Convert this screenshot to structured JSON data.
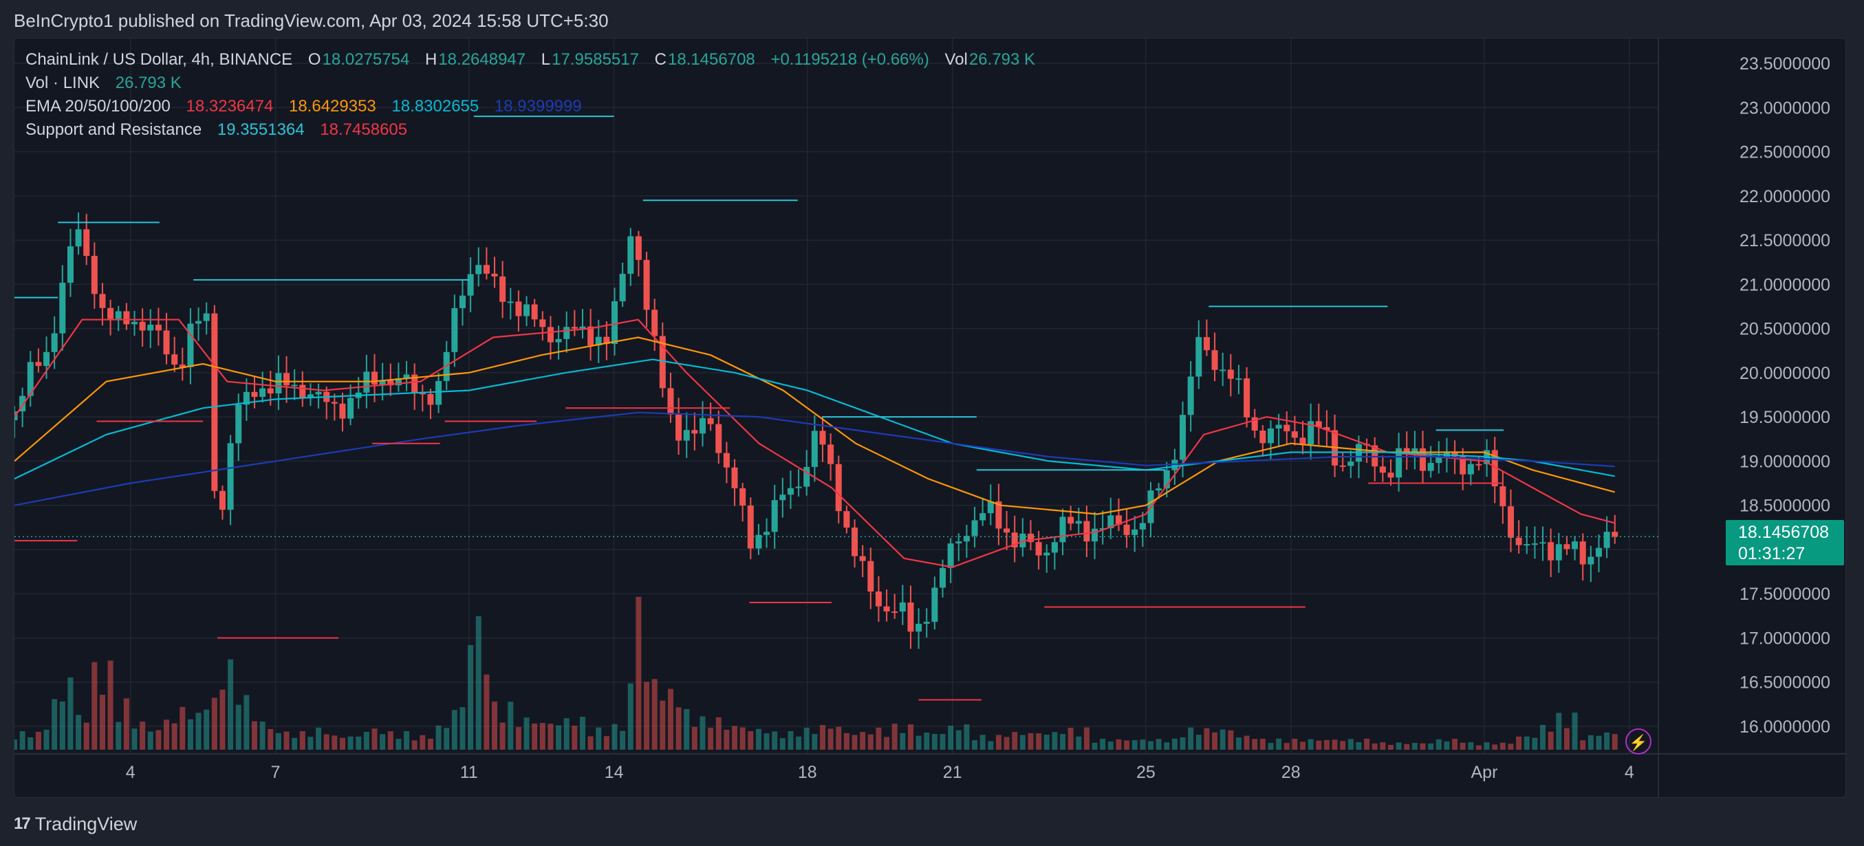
{
  "header": {
    "publisher_text": "BeInCrypto1 published on TradingView.com, Apr 03, 2024 15:58 UTC+5:30"
  },
  "legend": {
    "symbol": "ChainLink / US Dollar, 4h, BINANCE",
    "o_label": "O",
    "o_value": "18.0275754",
    "h_label": "H",
    "h_value": "18.2648947",
    "l_label": "L",
    "l_value": "17.9585517",
    "c_label": "C",
    "c_value": "18.1456708",
    "change": "+0.1195218 (+0.66%)",
    "vol_label": "Vol",
    "vol_value": "26.793 K",
    "vol_row_label": "Vol · LINK",
    "vol_row_value": "26.793 K",
    "ema_label": "EMA 20/50/100/200",
    "ema20": "18.3236474",
    "ema50": "18.6429353",
    "ema100": "18.8302655",
    "ema200": "18.9399999",
    "sr_label": "Support and Resistance",
    "sr_res": "19.3551364",
    "sr_sup": "18.7458605"
  },
  "price_tag": {
    "price": "18.1456708",
    "countdown": "01:31:27"
  },
  "footer": {
    "brand": "TradingView",
    "logo_glyph": "17"
  },
  "colors": {
    "up": "#26a69a",
    "down": "#ef5350",
    "ema20": "#f23645",
    "ema50": "#ff9800",
    "ema100": "#00bcd4",
    "ema200": "#1e3bb5",
    "resistance": "#26c6da",
    "support": "#f23645",
    "background": "#131722",
    "grid": "#222631"
  },
  "chart_data": {
    "type": "candlestick",
    "title": "ChainLink / US Dollar, 4h, BINANCE",
    "xlabel": "",
    "ylabel": "",
    "ylim": [
      15.7,
      23.7
    ],
    "y_ticks": [
      "23.5000000",
      "23.0000000",
      "22.5000000",
      "22.0000000",
      "21.5000000",
      "21.0000000",
      "20.5000000",
      "20.0000000",
      "19.5000000",
      "19.0000000",
      "18.5000000",
      "18.0000000",
      "17.5000000",
      "17.0000000",
      "16.5000000",
      "16.0000000"
    ],
    "y_tick_values": [
      23.5,
      23.0,
      22.5,
      22.0,
      21.5,
      21.0,
      20.5,
      20.0,
      19.5,
      19.0,
      18.5,
      18.0,
      17.5,
      17.0,
      16.5,
      16.0
    ],
    "x_ticks": [
      {
        "label": "4",
        "day": 4
      },
      {
        "label": "7",
        "day": 7
      },
      {
        "label": "11",
        "day": 11
      },
      {
        "label": "14",
        "day": 14
      },
      {
        "label": "18",
        "day": 18
      },
      {
        "label": "21",
        "day": 21
      },
      {
        "label": "25",
        "day": 25
      },
      {
        "label": "28",
        "day": 28
      },
      {
        "label": "Apr",
        "day": 32
      },
      {
        "label": "4",
        "day": 35
      }
    ],
    "x_range_days": [
      1.6,
      35.6
    ],
    "last_price": 18.1456708,
    "candle_anchors": [
      [
        1.6,
        19.6
      ],
      [
        2.0,
        20.0
      ],
      [
        2.3,
        20.3
      ],
      [
        2.6,
        21.0
      ],
      [
        2.9,
        21.6
      ],
      [
        3.2,
        21.2
      ],
      [
        3.4,
        20.7
      ],
      [
        3.7,
        20.5
      ],
      [
        4.0,
        20.7
      ],
      [
        4.5,
        20.4
      ],
      [
        5.0,
        20.1
      ],
      [
        5.3,
        20.5
      ],
      [
        5.6,
        20.6
      ],
      [
        5.8,
        18.0
      ],
      [
        6.0,
        19.0
      ],
      [
        6.2,
        19.5
      ],
      [
        6.6,
        19.9
      ],
      [
        7.0,
        19.8
      ],
      [
        7.5,
        19.9
      ],
      [
        8.0,
        19.6
      ],
      [
        8.6,
        19.7
      ],
      [
        9.2,
        20.0
      ],
      [
        9.8,
        19.8
      ],
      [
        10.4,
        19.8
      ],
      [
        10.8,
        20.9
      ],
      [
        11.1,
        21.3
      ],
      [
        11.4,
        21.0
      ],
      [
        11.8,
        20.9
      ],
      [
        12.2,
        20.6
      ],
      [
        12.6,
        20.5
      ],
      [
        13.0,
        20.4
      ],
      [
        13.5,
        20.5
      ],
      [
        13.9,
        20.3
      ],
      [
        14.4,
        21.8
      ],
      [
        14.7,
        20.6
      ],
      [
        15.1,
        19.6
      ],
      [
        15.6,
        19.2
      ],
      [
        16.0,
        19.5
      ],
      [
        16.4,
        18.8
      ],
      [
        16.8,
        18.1
      ],
      [
        17.3,
        18.4
      ],
      [
        17.8,
        18.8
      ],
      [
        18.2,
        19.3
      ],
      [
        18.6,
        18.7
      ],
      [
        19.0,
        17.9
      ],
      [
        19.3,
        17.5
      ],
      [
        19.6,
        17.4
      ],
      [
        19.9,
        17.3
      ],
      [
        20.2,
        17.0
      ],
      [
        20.4,
        17.3
      ],
      [
        20.7,
        17.6
      ],
      [
        21.0,
        18.0
      ],
      [
        21.3,
        18.3
      ],
      [
        21.7,
        18.4
      ],
      [
        22.0,
        18.3
      ],
      [
        22.4,
        18.1
      ],
      [
        22.8,
        17.9
      ],
      [
        23.2,
        18.3
      ],
      [
        23.6,
        18.2
      ],
      [
        24.0,
        18.3
      ],
      [
        24.5,
        18.2
      ],
      [
        25.0,
        18.4
      ],
      [
        25.4,
        18.8
      ],
      [
        25.8,
        19.6
      ],
      [
        26.1,
        20.3
      ],
      [
        26.4,
        20.2
      ],
      [
        26.8,
        19.9
      ],
      [
        27.2,
        19.4
      ],
      [
        27.6,
        19.3
      ],
      [
        28.0,
        19.3
      ],
      [
        28.5,
        19.4
      ],
      [
        29.0,
        19.0
      ],
      [
        29.5,
        19.1
      ],
      [
        30.0,
        18.9
      ],
      [
        30.5,
        19.1
      ],
      [
        31.0,
        19.0
      ],
      [
        31.5,
        19.0
      ],
      [
        32.0,
        19.0
      ],
      [
        32.4,
        18.5
      ],
      [
        32.8,
        17.9
      ],
      [
        33.2,
        18.1
      ],
      [
        33.6,
        18.0
      ],
      [
        34.0,
        17.9
      ],
      [
        34.4,
        18.1
      ],
      [
        34.7,
        18.15
      ]
    ],
    "series": [
      {
        "name": "EMA 20",
        "values": [
          [
            1.6,
            19.5
          ],
          [
            3,
            20.6
          ],
          [
            5,
            20.6
          ],
          [
            6,
            19.9
          ],
          [
            8,
            19.8
          ],
          [
            10,
            19.9
          ],
          [
            11.5,
            20.4
          ],
          [
            13.5,
            20.5
          ],
          [
            14.5,
            20.6
          ],
          [
            15.5,
            20.0
          ],
          [
            17,
            19.2
          ],
          [
            18.5,
            18.7
          ],
          [
            20,
            17.9
          ],
          [
            21,
            17.8
          ],
          [
            22.5,
            18.1
          ],
          [
            24,
            18.2
          ],
          [
            25,
            18.4
          ],
          [
            26.2,
            19.3
          ],
          [
            27.5,
            19.5
          ],
          [
            28.5,
            19.4
          ],
          [
            30,
            19.1
          ],
          [
            32,
            19.0
          ],
          [
            33,
            18.7
          ],
          [
            34,
            18.4
          ],
          [
            34.7,
            18.3
          ]
        ]
      },
      {
        "name": "EMA 50",
        "values": [
          [
            1.6,
            19.0
          ],
          [
            3.5,
            19.9
          ],
          [
            5.5,
            20.1
          ],
          [
            7,
            19.9
          ],
          [
            9,
            19.9
          ],
          [
            11,
            20.0
          ],
          [
            12.5,
            20.2
          ],
          [
            14.5,
            20.4
          ],
          [
            16,
            20.2
          ],
          [
            17.5,
            19.8
          ],
          [
            19,
            19.2
          ],
          [
            20.5,
            18.8
          ],
          [
            22,
            18.5
          ],
          [
            24,
            18.4
          ],
          [
            25,
            18.5
          ],
          [
            26.5,
            19.0
          ],
          [
            28,
            19.2
          ],
          [
            30,
            19.1
          ],
          [
            32,
            19.1
          ],
          [
            33,
            18.9
          ],
          [
            34.7,
            18.65
          ]
        ]
      },
      {
        "name": "EMA 100",
        "values": [
          [
            1.6,
            18.8
          ],
          [
            3.5,
            19.3
          ],
          [
            5.5,
            19.6
          ],
          [
            7,
            19.7
          ],
          [
            9,
            19.75
          ],
          [
            11,
            19.8
          ],
          [
            13,
            20.0
          ],
          [
            14.8,
            20.15
          ],
          [
            16.5,
            20.0
          ],
          [
            18,
            19.8
          ],
          [
            19.5,
            19.5
          ],
          [
            21,
            19.2
          ],
          [
            23,
            19.0
          ],
          [
            25,
            18.9
          ],
          [
            26.5,
            19.0
          ],
          [
            28,
            19.1
          ],
          [
            30,
            19.1
          ],
          [
            32,
            19.05
          ],
          [
            33,
            19.0
          ],
          [
            34.7,
            18.83
          ]
        ]
      },
      {
        "name": "EMA 200",
        "values": [
          [
            1.6,
            18.5
          ],
          [
            4,
            18.75
          ],
          [
            7,
            19.0
          ],
          [
            10,
            19.25
          ],
          [
            12,
            19.4
          ],
          [
            14.5,
            19.55
          ],
          [
            17,
            19.5
          ],
          [
            19,
            19.35
          ],
          [
            21,
            19.2
          ],
          [
            23,
            19.05
          ],
          [
            25,
            18.95
          ],
          [
            27,
            19.0
          ],
          [
            29,
            19.05
          ],
          [
            31,
            19.05
          ],
          [
            33,
            19.0
          ],
          [
            34.7,
            18.94
          ]
        ]
      }
    ],
    "resistance_levels": [
      {
        "value": 20.85,
        "from": 1.6,
        "to": 2.5
      },
      {
        "value": 21.7,
        "from": 2.5,
        "to": 4.6
      },
      {
        "value": 21.05,
        "from": 5.3,
        "to": 11.0
      },
      {
        "value": 22.9,
        "from": 11.1,
        "to": 14.0
      },
      {
        "value": 21.95,
        "from": 14.6,
        "to": 17.8
      },
      {
        "value": 19.5,
        "from": 18.3,
        "to": 21.5
      },
      {
        "value": 18.9,
        "from": 21.5,
        "to": 25.4
      },
      {
        "value": 20.75,
        "from": 26.3,
        "to": 30.0
      },
      {
        "value": 19.35,
        "from": 31.0,
        "to": 32.4
      }
    ],
    "support_levels": [
      {
        "value": 18.1,
        "from": 1.6,
        "to": 2.9
      },
      {
        "value": 19.45,
        "from": 3.3,
        "to": 5.5
      },
      {
        "value": 17.0,
        "from": 5.8,
        "to": 8.3
      },
      {
        "value": 19.2,
        "from": 9.0,
        "to": 10.4
      },
      {
        "value": 19.45,
        "from": 10.5,
        "to": 12.4
      },
      {
        "value": 19.6,
        "from": 13.0,
        "to": 16.4
      },
      {
        "value": 17.4,
        "from": 16.8,
        "to": 18.5
      },
      {
        "value": 16.3,
        "from": 20.3,
        "to": 21.6
      },
      {
        "value": 17.35,
        "from": 22.9,
        "to": 28.3
      },
      {
        "value": 18.75,
        "from": 29.6,
        "to": 32.4
      }
    ],
    "volume_k": [
      [
        1.7,
        10
      ],
      [
        2.1,
        14
      ],
      [
        2.4,
        30
      ],
      [
        2.6,
        47
      ],
      [
        2.8,
        20
      ],
      [
        3.2,
        48
      ],
      [
        3.6,
        25
      ],
      [
        3.8,
        28
      ],
      [
        4.0,
        16
      ],
      [
        4.3,
        12
      ],
      [
        4.6,
        18
      ],
      [
        5.0,
        24
      ],
      [
        5.3,
        20
      ],
      [
        5.5,
        38
      ],
      [
        5.7,
        28
      ],
      [
        5.9,
        50
      ],
      [
        6.1,
        32
      ],
      [
        6.4,
        18
      ],
      [
        6.8,
        12
      ],
      [
        7.2,
        10
      ],
      [
        7.7,
        12
      ],
      [
        8.2,
        8
      ],
      [
        8.8,
        12
      ],
      [
        9.3,
        10
      ],
      [
        9.8,
        8
      ],
      [
        10.3,
        14
      ],
      [
        10.6,
        25
      ],
      [
        10.9,
        74
      ],
      [
        11.2,
        62
      ],
      [
        11.5,
        26
      ],
      [
        12,
        18
      ],
      [
        12.5,
        16
      ],
      [
        13,
        18
      ],
      [
        13.5,
        12
      ],
      [
        14,
        14
      ],
      [
        14.3,
        38
      ],
      [
        14.45,
        100
      ],
      [
        14.65,
        42
      ],
      [
        15.0,
        34
      ],
      [
        15.4,
        22
      ],
      [
        15.8,
        18
      ],
      [
        16.3,
        14
      ],
      [
        16.8,
        12
      ],
      [
        17.3,
        10
      ],
      [
        17.8,
        12
      ],
      [
        18.3,
        14
      ],
      [
        18.8,
        10
      ],
      [
        19.3,
        12
      ],
      [
        19.8,
        14
      ],
      [
        20.3,
        10
      ],
      [
        20.8,
        14
      ],
      [
        21.4,
        8
      ],
      [
        22,
        10
      ],
      [
        22.6,
        10
      ],
      [
        23.2,
        12
      ],
      [
        23.8,
        6
      ],
      [
        24.4,
        6
      ],
      [
        25,
        6
      ],
      [
        25.6,
        12
      ],
      [
        26.2,
        12
      ],
      [
        26.8,
        8
      ],
      [
        27.4,
        6
      ],
      [
        28,
        6
      ],
      [
        28.6,
        6
      ],
      [
        29.2,
        6
      ],
      [
        29.8,
        4
      ],
      [
        30.4,
        4
      ],
      [
        31,
        6
      ],
      [
        31.6,
        4
      ],
      [
        32.2,
        4
      ],
      [
        32.7,
        8
      ],
      [
        33.1,
        14
      ],
      [
        33.5,
        20
      ],
      [
        33.9,
        8
      ],
      [
        34.3,
        10
      ],
      [
        34.7,
        8
      ]
    ]
  }
}
